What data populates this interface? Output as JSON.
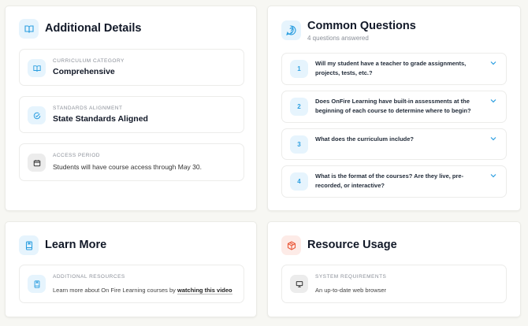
{
  "additional_details": {
    "title": "Additional Details",
    "icon": "book-open-icon",
    "items": [
      {
        "label": "Curriculum Category",
        "value": "Comprehensive",
        "icon": "book-open-icon"
      },
      {
        "label": "Standards Alignment",
        "value": "State Standards Aligned",
        "icon": "check-circle-icon"
      },
      {
        "label": "Access Period",
        "value": "Students will have course access through May 30.",
        "icon": "calendar-icon"
      }
    ]
  },
  "common_questions": {
    "title": "Common Questions",
    "subtitle": "4 questions answered",
    "icon": "question-bubble-icon",
    "questions": [
      {
        "number": "1",
        "text": "Will my student have a teacher to grade assignments, projects, tests, etc.?"
      },
      {
        "number": "2",
        "text": "Does OnFire Learning have built-in assessments at the beginning of each course to determine where to begin?"
      },
      {
        "number": "3",
        "text": "What does the curriculum include?"
      },
      {
        "number": "4",
        "text": "What is the format of the courses? Are they live, pre-recorded, or interactive?"
      }
    ]
  },
  "learn_more": {
    "title": "Learn More",
    "icon": "book-bookmark-icon",
    "item": {
      "label": "Additional Resources",
      "text": "Learn more about On Fire Learning courses by ",
      "link": "watching this video"
    }
  },
  "resource_usage": {
    "title": "Resource Usage",
    "icon": "package-icon",
    "item": {
      "label": "System Requirements",
      "value": "An up-to-date web browser",
      "icon": "monitor-icon"
    }
  },
  "colors": {
    "accent": "#2b9ee0",
    "resource_accent": "#ea5a3c",
    "background": "#f7f7f3"
  }
}
